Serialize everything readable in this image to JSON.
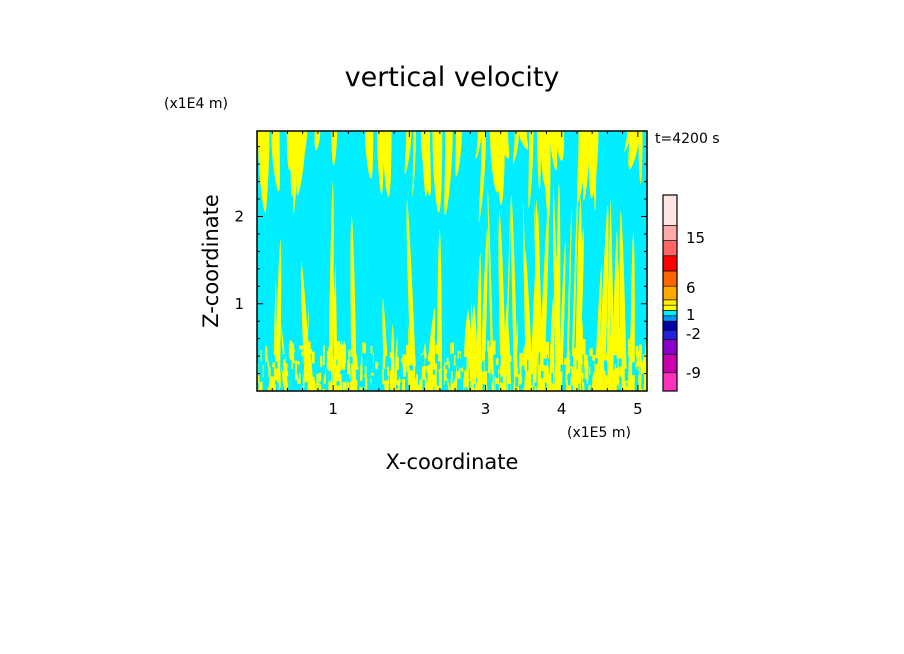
{
  "chart_data": {
    "type": "heatmap",
    "title": "vertical velocity",
    "time_label": "t=4200 s",
    "xlabel": "X-coordinate",
    "ylabel": "Z-coordinate",
    "x_unit": "(x1E5 m)",
    "y_unit": "(x1E4 m)",
    "xlim": [
      0,
      5.12
    ],
    "ylim": [
      0,
      2.98
    ],
    "x_ticks": [
      "1",
      "2",
      "3",
      "4",
      "5"
    ],
    "x_tick_values": [
      1,
      2,
      3,
      4,
      5
    ],
    "y_ticks": [
      "1",
      "2"
    ],
    "y_tick_values": [
      1,
      2
    ],
    "grid": false,
    "field_colors": {
      "negative_weak": "#00eeff",
      "positive_weak": "#ffff00"
    },
    "colorbar": {
      "labels": [
        "15",
        "6",
        "1",
        "-2",
        "-9"
      ],
      "colors": [
        "#ff33bb",
        "#cc00aa",
        "#8800cc",
        "#2222dd",
        "#0000aa",
        "#0099ff",
        "#00eeff",
        "#ffff00",
        "#ffee00",
        "#ffaa00",
        "#ff6600",
        "#ff0000",
        "#ff6666",
        "#ffaaaa",
        "#ffe4e4"
      ]
    }
  }
}
